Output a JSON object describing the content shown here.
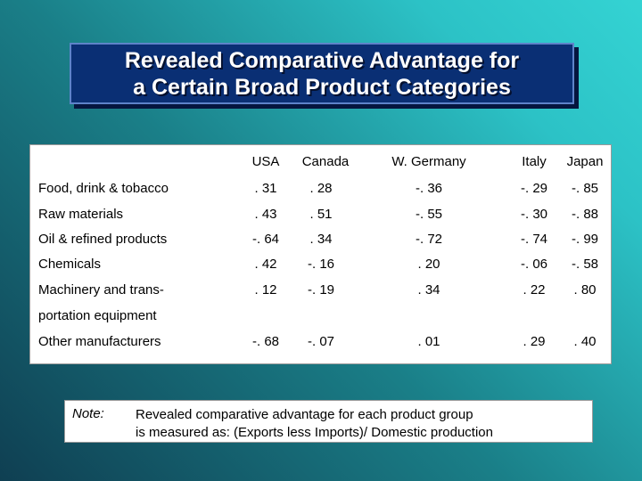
{
  "title": "Revealed Comparative Advantage for\na Certain Broad Product Categories",
  "table": {
    "columns": [
      "USA",
      "Canada",
      "W. Germany",
      "Italy",
      "Japan"
    ],
    "rows": [
      {
        "label": "Food, drink & tobacco",
        "label2": "",
        "values": [
          ". 31",
          ". 28",
          "-. 36",
          "-. 29",
          "-. 85"
        ]
      },
      {
        "label": "Raw materials",
        "label2": "",
        "values": [
          ". 43",
          ". 51",
          "-. 55",
          "-. 30",
          "-. 88"
        ]
      },
      {
        "label": "Oil & refined products",
        "label2": "",
        "values": [
          "-. 64",
          ". 34",
          "-. 72",
          "-. 74",
          "-. 99"
        ]
      },
      {
        "label": "Chemicals",
        "label2": "",
        "values": [
          ". 42",
          "-. 16",
          ". 20",
          "-. 06",
          "-. 58"
        ]
      },
      {
        "label": "Machinery and trans-",
        "label2": "portation equipment",
        "values": [
          ". 12",
          "-. 19",
          ". 34",
          ". 22",
          ". 80"
        ]
      },
      {
        "label": "Other manufacturers",
        "label2": "",
        "values": [
          "-. 68",
          "-. 07",
          ". 01",
          ". 29",
          ". 40"
        ]
      }
    ]
  },
  "note": {
    "label": "Note:",
    "text": "Revealed comparative advantage for each product group\nis measured as: (Exports less Imports)/ Domestic production"
  }
}
